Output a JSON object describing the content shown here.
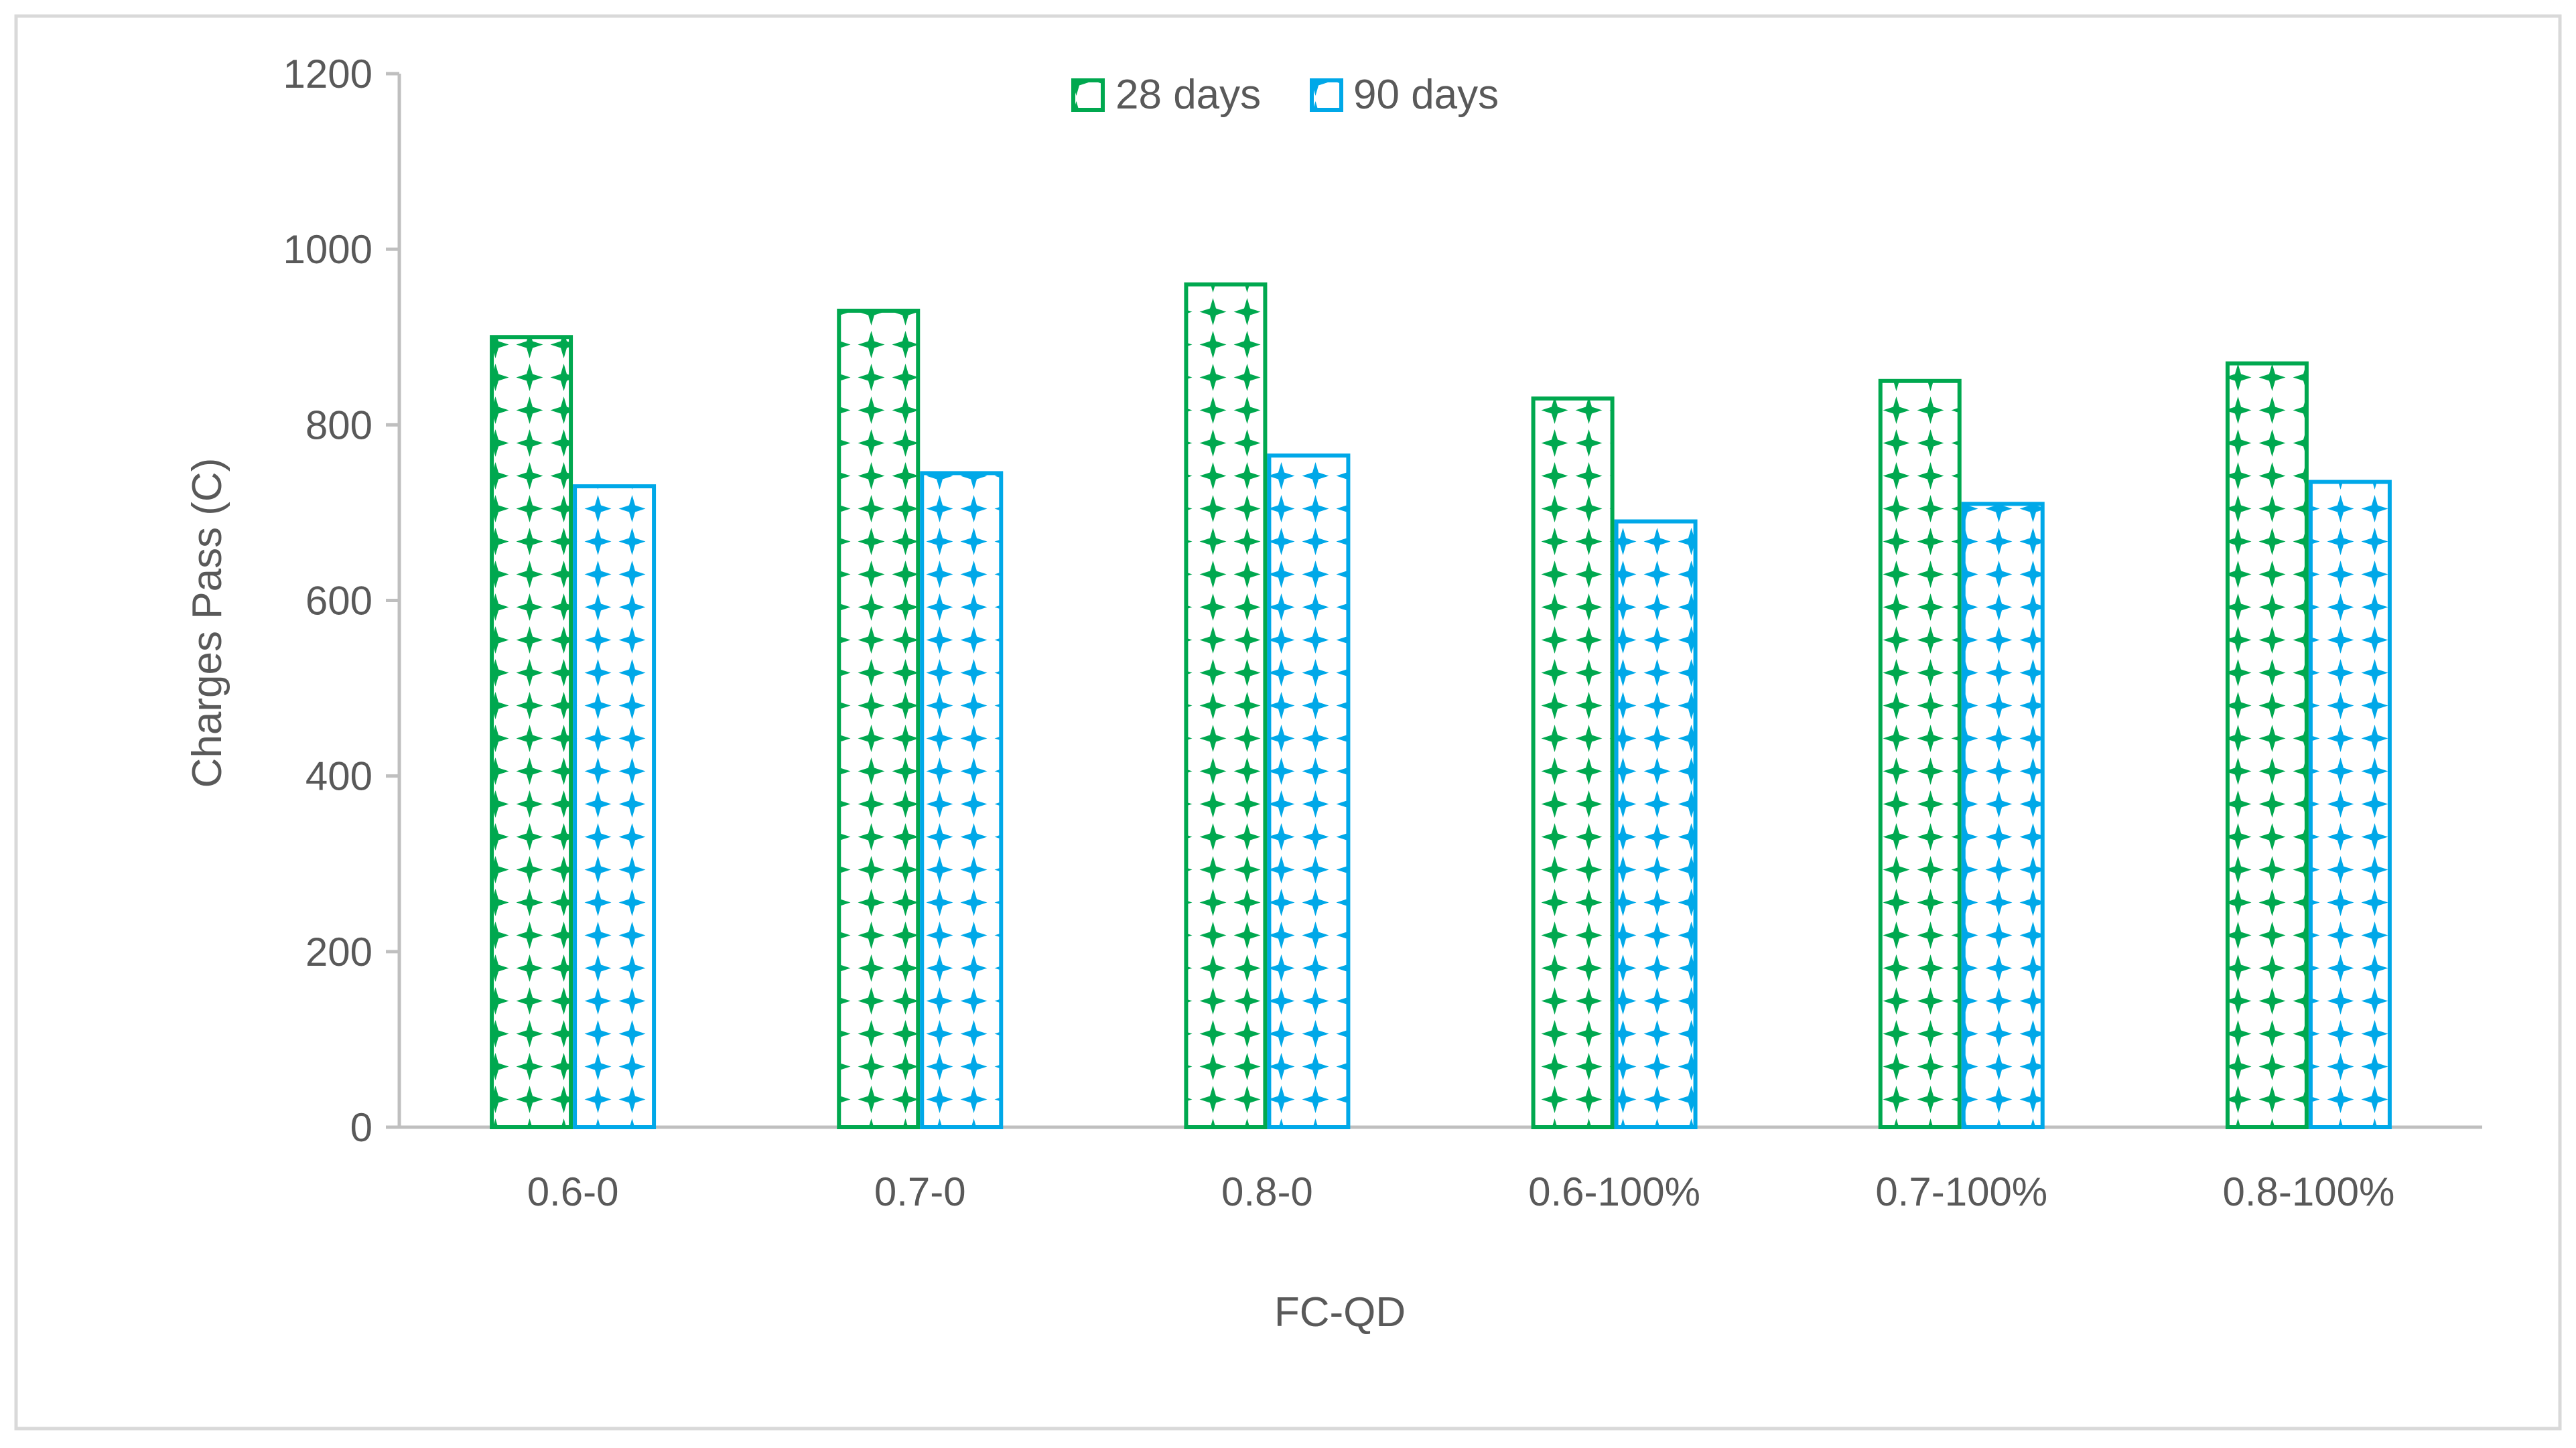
{
  "chart_data": {
    "type": "bar",
    "title": "",
    "xlabel": "FC-QD",
    "ylabel": "Charges Pass (C)",
    "ylim": [
      0,
      1200
    ],
    "yticks": [
      0,
      200,
      400,
      600,
      800,
      1000,
      1200
    ],
    "yticks_labels": [
      "0",
      "200",
      "400",
      "600",
      "800",
      "1000",
      "1200"
    ],
    "grid": false,
    "legend_position": "top-center",
    "categories": [
      "0.6-0",
      "0.7-0",
      "0.8-0",
      "0.6-100%",
      "0.7-100%",
      "0.8-100%"
    ],
    "series": [
      {
        "name": "28 days",
        "color": "#00A84F",
        "values": [
          900,
          930,
          960,
          830,
          850,
          870
        ]
      },
      {
        "name": "90 days",
        "color": "#00A8E8",
        "values": [
          730,
          745,
          765,
          690,
          710,
          735
        ]
      }
    ]
  }
}
